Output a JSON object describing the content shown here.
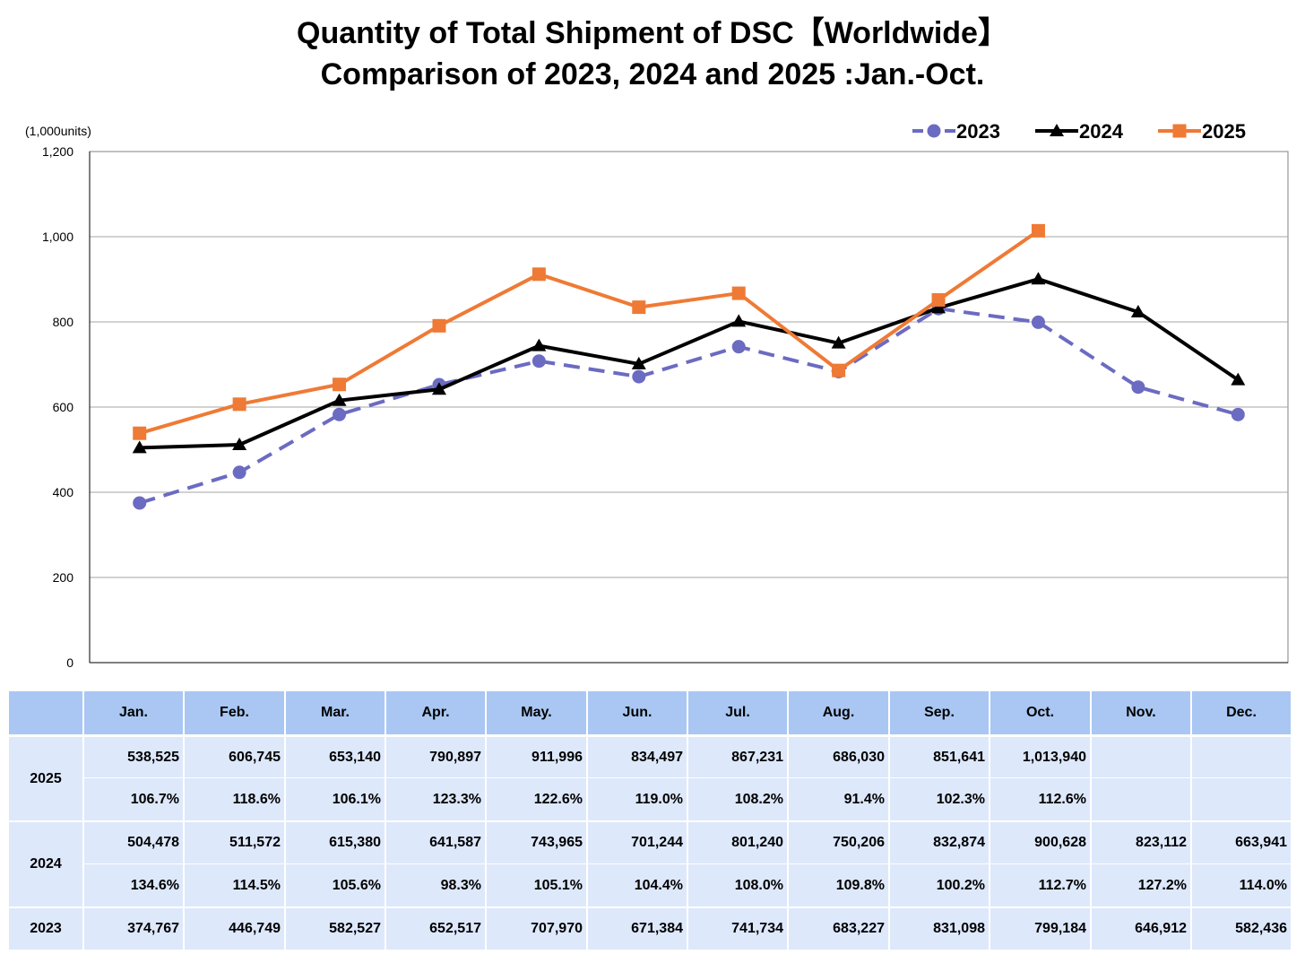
{
  "chart_data": {
    "type": "line",
    "title": "Quantity of Total Shipment of DSC【Worldwide】",
    "subtitle": "Comparison of 2023, 2024 and 2025 :Jan.-Oct.",
    "ylabel": "(1,000units)",
    "ylim": [
      0,
      1200
    ],
    "yticks": [
      "0",
      "200",
      "400",
      "600",
      "800",
      "1,000",
      "1,200"
    ],
    "categories": [
      "Jan.",
      "Feb.",
      "Mar.",
      "Apr.",
      "May.",
      "Jun.",
      "Jul.",
      "Aug.",
      "Sep.",
      "Oct.",
      "Nov.",
      "Dec."
    ],
    "legend_position": "top-right",
    "grid": true,
    "series": [
      {
        "name": "2023",
        "color": "#6b6bc2",
        "marker": "circle",
        "dash": true,
        "values": [
          374.767,
          446.749,
          582.527,
          652.517,
          707.97,
          671.384,
          741.734,
          683.227,
          831.098,
          799.184,
          646.912,
          582.436
        ]
      },
      {
        "name": "2024",
        "color": "#000000",
        "marker": "triangle",
        "dash": false,
        "values": [
          504.478,
          511.572,
          615.38,
          641.587,
          743.965,
          701.244,
          801.24,
          750.206,
          832.874,
          900.628,
          823.112,
          663.941
        ]
      },
      {
        "name": "2025",
        "color": "#ef7a35",
        "marker": "square",
        "dash": false,
        "values": [
          538.525,
          606.745,
          653.14,
          790.897,
          911.996,
          834.497,
          867.231,
          686.03,
          851.641,
          1013.94,
          null,
          null
        ]
      }
    ]
  },
  "table": {
    "months": [
      "Jan.",
      "Feb.",
      "Mar.",
      "Apr.",
      "May.",
      "Jun.",
      "Jul.",
      "Aug.",
      "Sep.",
      "Oct.",
      "Nov.",
      "Dec."
    ],
    "rows": [
      {
        "year": "2025",
        "units": [
          "538,525",
          "606,745",
          "653,140",
          "790,897",
          "911,996",
          "834,497",
          "867,231",
          "686,030",
          "851,641",
          "1,013,940",
          "",
          ""
        ],
        "ratio": [
          "106.7%",
          "118.6%",
          "106.1%",
          "123.3%",
          "122.6%",
          "119.0%",
          "108.2%",
          "91.4%",
          "102.3%",
          "112.6%",
          "",
          ""
        ]
      },
      {
        "year": "2024",
        "units": [
          "504,478",
          "511,572",
          "615,380",
          "641,587",
          "743,965",
          "701,244",
          "801,240",
          "750,206",
          "832,874",
          "900,628",
          "823,112",
          "663,941"
        ],
        "ratio": [
          "134.6%",
          "114.5%",
          "105.6%",
          "98.3%",
          "105.1%",
          "104.4%",
          "108.0%",
          "109.8%",
          "100.2%",
          "112.7%",
          "127.2%",
          "114.0%"
        ]
      },
      {
        "year": "2023",
        "units": [
          "374,767",
          "446,749",
          "582,527",
          "652,517",
          "707,970",
          "671,384",
          "741,734",
          "683,227",
          "831,098",
          "799,184",
          "646,912",
          "582,436"
        ]
      }
    ]
  }
}
